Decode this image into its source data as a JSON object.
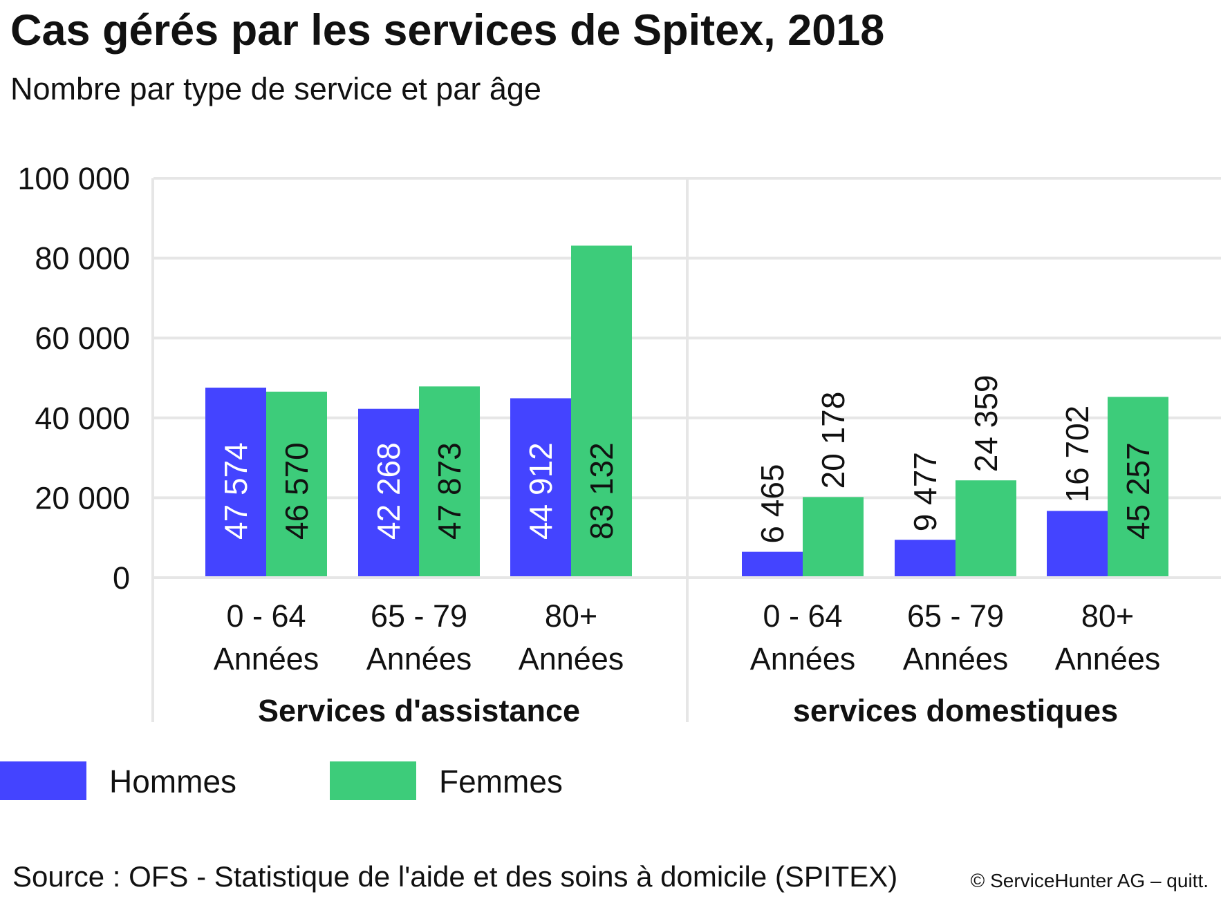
{
  "chart_data": {
    "type": "bar",
    "title": "Cas gérés par les services de Spitex, 2018",
    "subtitle": "Nombre par type de service et par âge",
    "ylim": [
      0,
      100000
    ],
    "yticks": [
      0,
      20000,
      40000,
      60000,
      80000,
      100000
    ],
    "ytick_labels": [
      "0",
      "20 000",
      "40 000",
      "60 000",
      "80 000",
      "100 000"
    ],
    "grid": true,
    "legend_position": "bottom-left",
    "groups": [
      {
        "label": "Services d'assistance",
        "categories": [
          {
            "line1": "0 - 64",
            "line2": "Années",
            "values": [
              47574,
              46570
            ],
            "labels": [
              "47 574",
              "46 570"
            ]
          },
          {
            "line1": "65 - 79",
            "line2": "Années",
            "values": [
              42268,
              47873
            ],
            "labels": [
              "42 268",
              "47 873"
            ]
          },
          {
            "line1": "80+",
            "line2": "Années",
            "values": [
              44912,
              83132
            ],
            "labels": [
              "44 912",
              "83 132"
            ]
          }
        ]
      },
      {
        "label": "services domestiques",
        "categories": [
          {
            "line1": "0 - 64",
            "line2": "Années",
            "values": [
              6465,
              20178
            ],
            "labels": [
              "6 465",
              "20 178"
            ]
          },
          {
            "line1": "65 - 79",
            "line2": "Années",
            "values": [
              9477,
              24359
            ],
            "labels": [
              "9 477",
              "24 359"
            ]
          },
          {
            "line1": "80+",
            "line2": "Années",
            "values": [
              16702,
              45257
            ],
            "labels": [
              "16 702",
              "45 257"
            ]
          }
        ]
      }
    ],
    "series": [
      {
        "name": "Hommes",
        "color": "#4444ff"
      },
      {
        "name": "Femmes",
        "color": "#3dcc7a"
      }
    ]
  },
  "source": "Source : OFS - Statistique de l'aide et des soins à domicile (SPITEX)",
  "copyright": "© ServiceHunter AG – quitt."
}
